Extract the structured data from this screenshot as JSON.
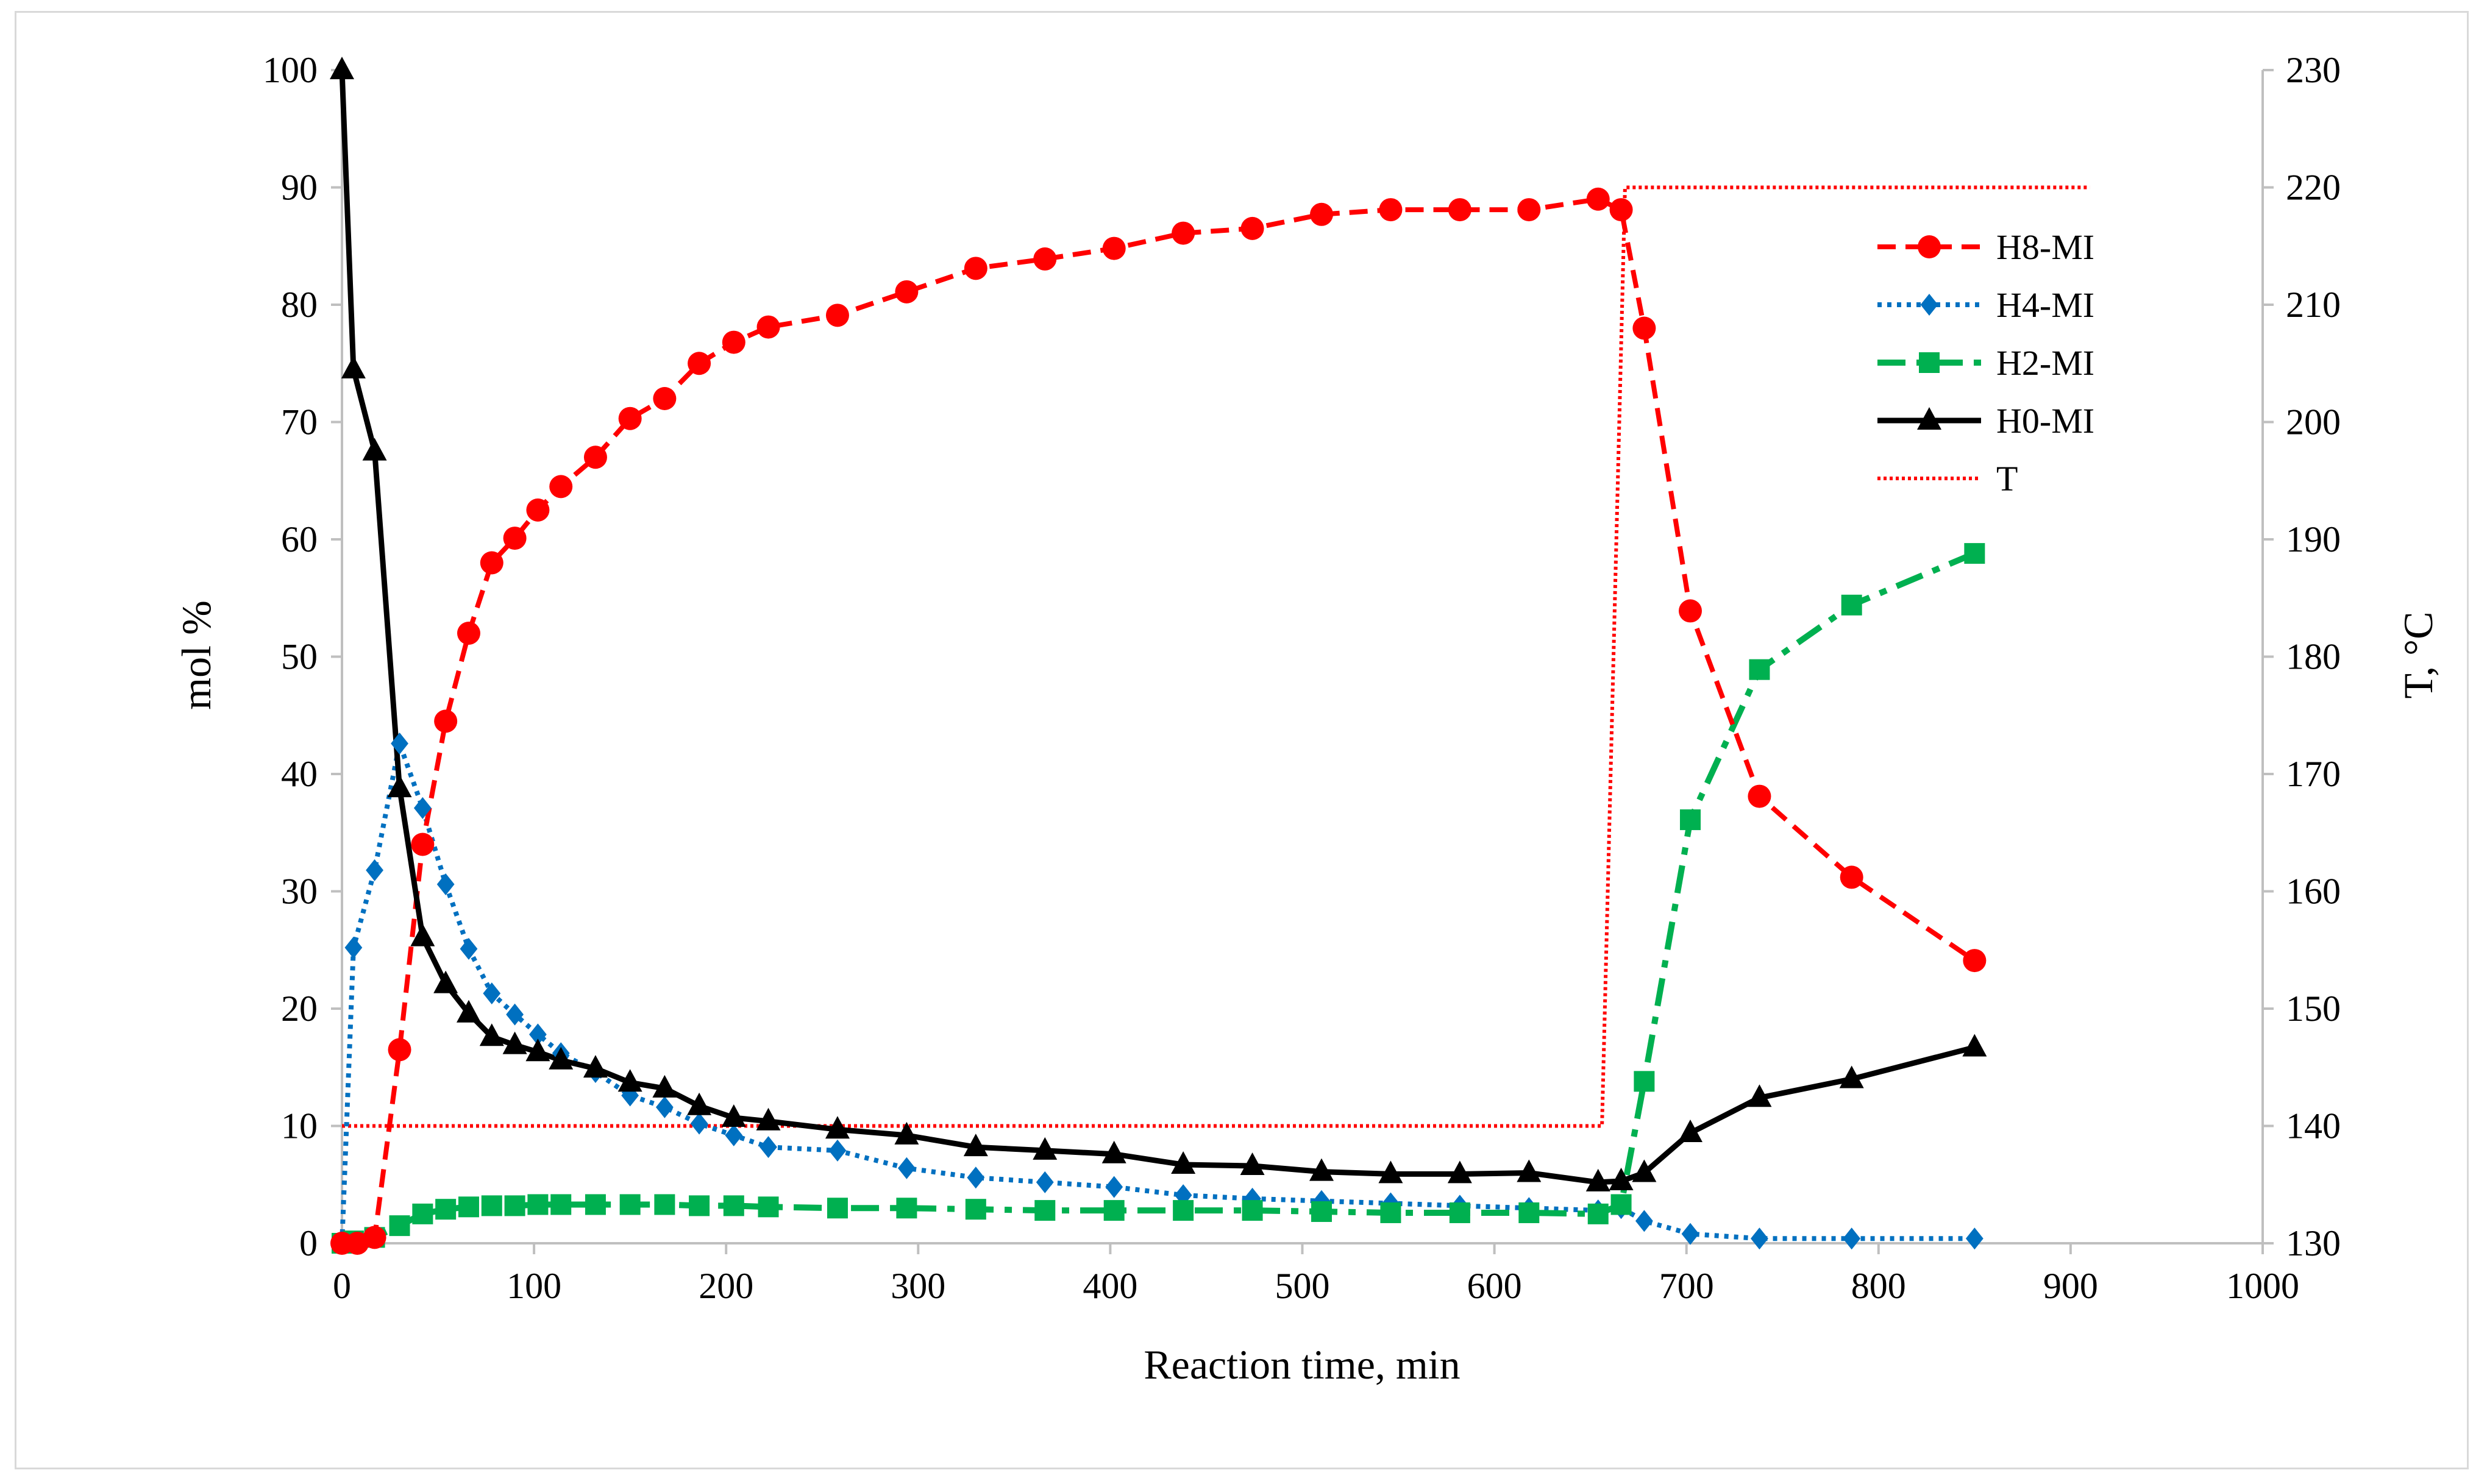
{
  "chart_data": {
    "type": "line",
    "title": "",
    "xlabel": "Reaction time, min",
    "ylabel": "mol %",
    "y2label": "T, °C",
    "xlim": [
      0,
      1000
    ],
    "ylim": [
      0,
      100
    ],
    "y2lim": [
      130,
      230
    ],
    "xticks": [
      "0",
      "100",
      "200",
      "300",
      "400",
      "500",
      "600",
      "700",
      "800",
      "900",
      "1000"
    ],
    "yticks": [
      "0",
      "10",
      "20",
      "30",
      "40",
      "50",
      "60",
      "70",
      "80",
      "90",
      "100"
    ],
    "y2ticks": [
      "130",
      "140",
      "150",
      "160",
      "170",
      "180",
      "190",
      "200",
      "210",
      "220",
      "230"
    ],
    "grid": false,
    "legend_position": "top-right",
    "series": [
      {
        "name": "H8-MI",
        "axis": "left",
        "color": "#ff0000",
        "marker": "circle",
        "dash": "dash",
        "x": [
          0,
          8,
          17,
          30,
          42,
          54,
          66,
          78,
          90,
          102,
          114,
          132,
          150,
          168,
          186,
          204,
          222,
          258,
          294,
          330,
          366,
          402,
          438,
          474,
          510,
          546,
          582,
          618,
          654,
          666,
          678,
          702,
          738,
          786,
          850
        ],
        "y": [
          0,
          0,
          0.5,
          16.5,
          34,
          44.5,
          52,
          58,
          60.1,
          62.5,
          64.5,
          67,
          70.3,
          72,
          75,
          76.8,
          78.1,
          79.1,
          81.1,
          83.1,
          83.9,
          84.8,
          86.1,
          86.5,
          87.7,
          88.1,
          88.1,
          88.1,
          89,
          88.1,
          78,
          53.9,
          38.1,
          31.2,
          24.1
        ]
      },
      {
        "name": "H4-MI",
        "axis": "left",
        "color": "#0070c0",
        "marker": "diamond",
        "dash": "dot",
        "x": [
          0,
          6,
          17,
          30,
          42,
          54,
          66,
          78,
          90,
          102,
          114,
          132,
          150,
          168,
          186,
          204,
          222,
          258,
          294,
          330,
          366,
          402,
          438,
          474,
          510,
          546,
          582,
          618,
          654,
          666,
          678,
          702,
          738,
          786,
          850
        ],
        "y": [
          0,
          25.2,
          31.8,
          42.6,
          37.1,
          30.6,
          25.1,
          21.3,
          19.5,
          17.8,
          16.2,
          14.6,
          12.6,
          11.6,
          10.2,
          9.2,
          8.2,
          7.9,
          6.4,
          5.6,
          5.2,
          4.8,
          4.1,
          3.8,
          3.6,
          3.4,
          3.2,
          3,
          2.8,
          3,
          1.9,
          0.8,
          0.4,
          0.4,
          0.4
        ]
      },
      {
        "name": "H2-MI",
        "axis": "left",
        "color": "#00b050",
        "marker": "square",
        "dash": "dashdot",
        "x": [
          0,
          6,
          17,
          30,
          42,
          54,
          66,
          78,
          90,
          102,
          114,
          132,
          150,
          168,
          186,
          204,
          222,
          258,
          294,
          330,
          366,
          402,
          438,
          474,
          510,
          546,
          582,
          618,
          654,
          666,
          678,
          702,
          738,
          786,
          850
        ],
        "y": [
          0,
          0.2,
          0.5,
          1.5,
          2.5,
          2.9,
          3.1,
          3.2,
          3.2,
          3.3,
          3.3,
          3.3,
          3.3,
          3.3,
          3.2,
          3.2,
          3.1,
          3,
          3,
          2.9,
          2.8,
          2.8,
          2.8,
          2.8,
          2.7,
          2.6,
          2.6,
          2.6,
          2.5,
          3.3,
          13.8,
          36.1,
          48.9,
          54.4,
          58.8
        ]
      },
      {
        "name": "H0-MI",
        "axis": "left",
        "color": "#000000",
        "marker": "triangle",
        "dash": "solid",
        "x": [
          0,
          6,
          17,
          30,
          42,
          54,
          66,
          78,
          90,
          102,
          114,
          132,
          150,
          168,
          186,
          204,
          222,
          258,
          294,
          330,
          366,
          402,
          438,
          474,
          510,
          546,
          582,
          618,
          654,
          666,
          678,
          702,
          738,
          786,
          850
        ],
        "y": [
          100,
          74.5,
          67.5,
          38.8,
          26.1,
          22.1,
          19.6,
          17.6,
          16.9,
          16.3,
          15.6,
          14.9,
          13.7,
          13.2,
          11.7,
          10.7,
          10.4,
          9.7,
          9.2,
          8.2,
          7.9,
          7.6,
          6.7,
          6.6,
          6.1,
          5.9,
          5.9,
          6,
          5.2,
          5.3,
          6,
          9.4,
          12.4,
          14,
          16.7
        ]
      },
      {
        "name": "T",
        "axis": "right",
        "color": "#ff0000",
        "marker": "none",
        "dash": "dense-dot",
        "x": [
          0,
          656,
          668,
          910
        ],
        "y": [
          140,
          140,
          220,
          220
        ]
      }
    ]
  }
}
